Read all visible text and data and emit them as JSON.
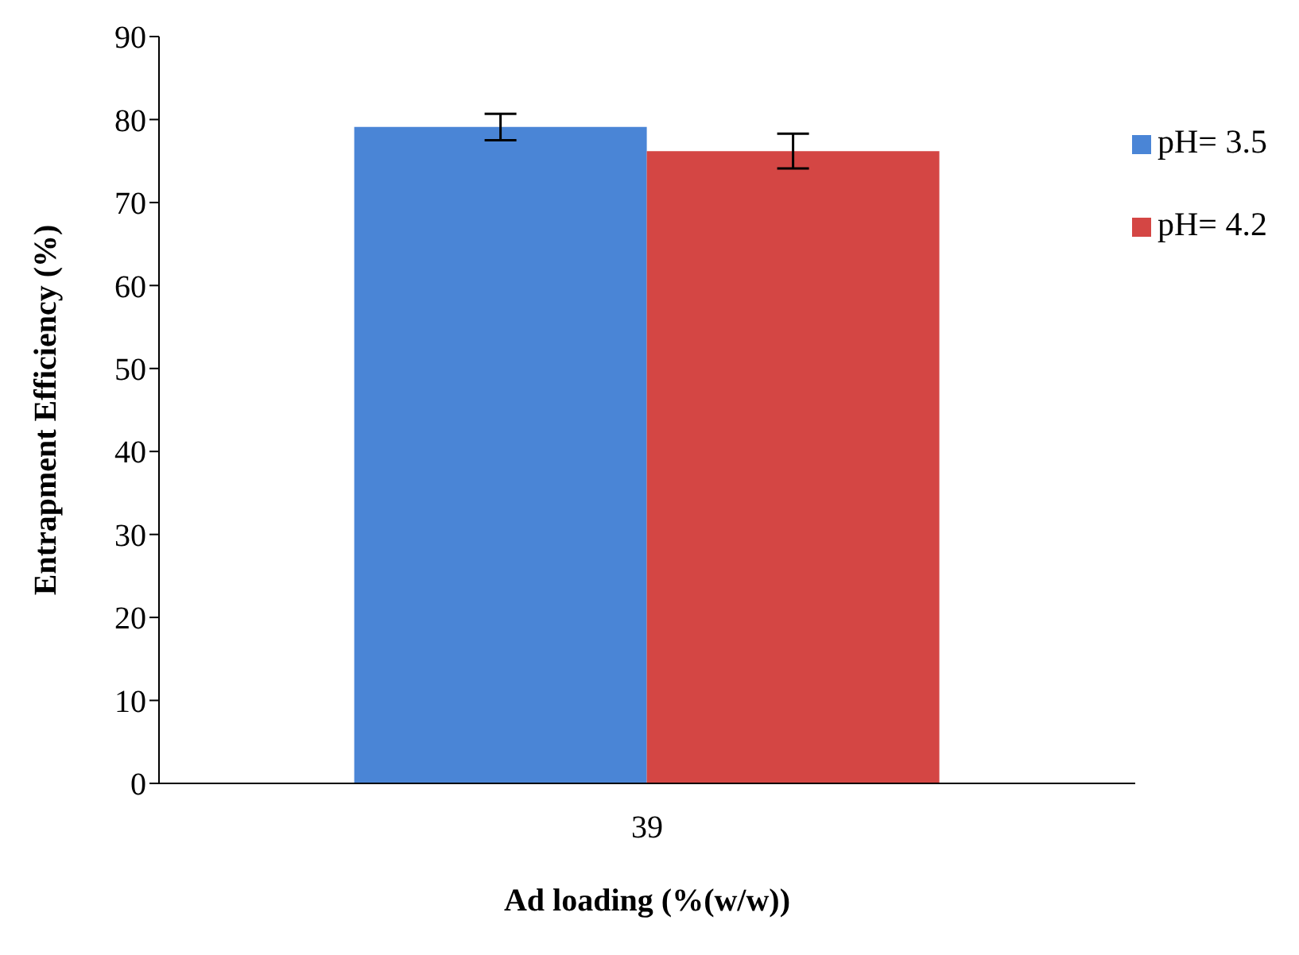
{
  "chart_data": {
    "type": "bar",
    "xlabel": "Ad loading (%(w/w))",
    "ylabel": "Entrapment Efficiency (%)",
    "categories": [
      "39"
    ],
    "series": [
      {
        "name": "pH= 3.5",
        "color": "#4a85d6",
        "values": [
          79.1
        ],
        "errors": [
          1.6
        ]
      },
      {
        "name": "pH= 4.2",
        "color": "#d44644",
        "values": [
          76.2
        ],
        "errors": [
          2.1
        ]
      }
    ],
    "ylim": [
      0,
      90
    ],
    "yticks": [
      0,
      10,
      20,
      30,
      40,
      50,
      60,
      70,
      80,
      90
    ],
    "grid": false,
    "legend": "top right"
  }
}
